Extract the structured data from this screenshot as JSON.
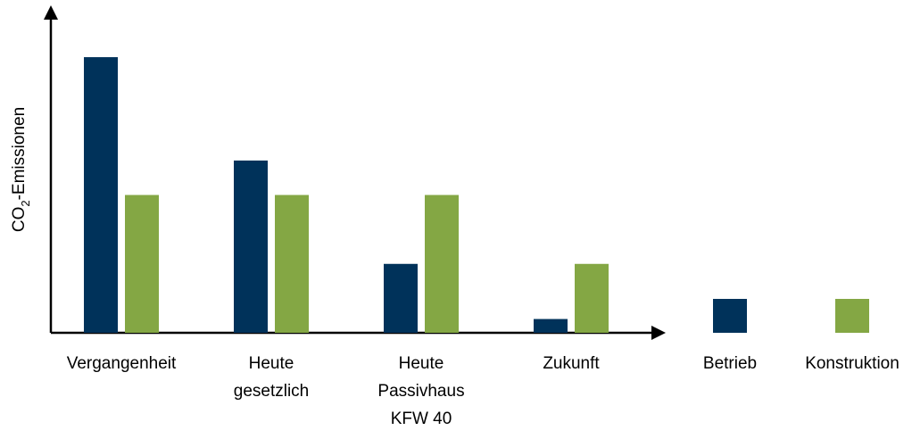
{
  "chart_data": {
    "type": "bar",
    "y_label": [
      "CO",
      "2",
      "-Emissionen"
    ],
    "categories": [
      "Vergangenheit",
      "Heute\ngesetzlich",
      "Heute\nPassivhaus\nKFW 40",
      "Zukunft"
    ],
    "series": [
      {
        "name": "Betrieb",
        "color": "#00325a",
        "values": [
          4,
          2.5,
          1,
          0.2
        ]
      },
      {
        "name": "Konstruktion",
        "color": "#84a744",
        "values": [
          2,
          2,
          2,
          1
        ]
      }
    ],
    "ylim": [
      0,
      4.7
    ]
  }
}
